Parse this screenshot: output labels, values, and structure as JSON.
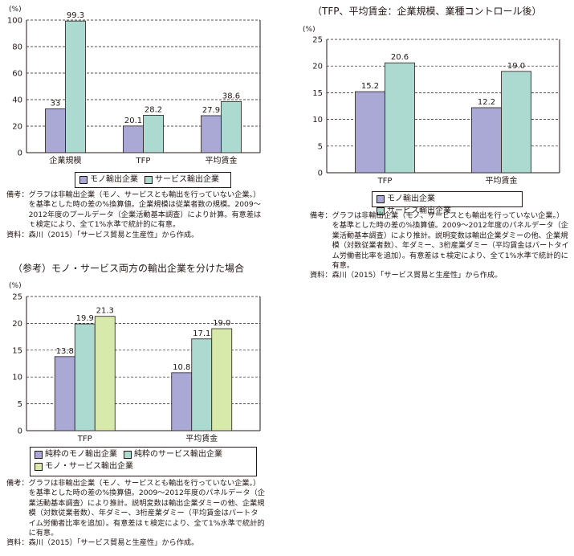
{
  "chart_data": [
    {
      "type": "bar",
      "title": "",
      "ylabel": "(%)",
      "ylim": [
        0,
        100
      ],
      "yticks": [
        0,
        20,
        40,
        60,
        80,
        100
      ],
      "categories": [
        "企業規模",
        "TFP",
        "平均賃金"
      ],
      "series": [
        {
          "name": "モノ輸出企業",
          "values": [
            33,
            20.1,
            27.9
          ],
          "labels": [
            "33",
            "20.1",
            "27.9"
          ],
          "color": "#aaa8d5"
        },
        {
          "name": "サービス輸出企業",
          "values": [
            99.3,
            28.2,
            38.6
          ],
          "labels": [
            "99.3",
            "28.2",
            "38.6"
          ],
          "color": "#acd9d0"
        }
      ],
      "grid": true,
      "legend_position": "bottom",
      "note": [
        {
          "label": "備考：",
          "text": "グラフは非輸出企業（モノ、サービスとも輸出を行っていない企業。）を基準とした時の差の%換算値。企業規模は従業者数の規模。2009～2012年度のプールデータ（企業活動基本調査）により計算。有意差はｔ検定により、全て1%水準で統計的に有意。"
        },
        {
          "label": "資料：",
          "text": "森川（2015）「サービス貿易と生産性」から作成。"
        }
      ]
    },
    {
      "type": "bar",
      "title": "（TFP、平均賃金：企業規模、業種コントロール後）",
      "ylabel": "(%)",
      "ylim": [
        0,
        25
      ],
      "yticks": [
        0,
        5,
        10,
        15,
        20,
        25
      ],
      "categories": [
        "TFP",
        "平均賃金"
      ],
      "series": [
        {
          "name": "モノ輸出企業",
          "values": [
            15.2,
            12.2
          ],
          "labels": [
            "15.2",
            "12.2"
          ],
          "color": "#aaa8d5"
        },
        {
          "name": "サービス輸出企業",
          "values": [
            20.6,
            19.0
          ],
          "labels": [
            "20.6",
            "19.0"
          ],
          "color": "#acd9d0"
        }
      ],
      "grid": true,
      "legend_position": "bottom",
      "note": [
        {
          "label": "備考：",
          "text": "グラフは非輸出企業（モノ、サービスとも輸出を行っていない企業。）を基準とした時の差の%換算値。2009～2012年度のパネルデータ（企業活動基本調査）により推計。説明変数は輸出企業ダミーの他、企業規模（対数従業者数）、年ダミー、3桁産業ダミー（平均賃金はパートタイム労働者比率を追加）。有意差はｔ検定により、全て1%水準で統計的に有意。"
        },
        {
          "label": "資料：",
          "text": "森川（2015）「サービス貿易と生産性」から作成。"
        }
      ]
    },
    {
      "type": "bar",
      "title": "（参考）モノ・サービス両方の輸出企業を分けた場合",
      "ylabel": "(%)",
      "ylim": [
        0,
        25
      ],
      "yticks": [
        0,
        5,
        10,
        15,
        20,
        25
      ],
      "categories": [
        "TFP",
        "平均賃金"
      ],
      "series": [
        {
          "name": "純粋のモノ輸出企業",
          "values": [
            13.8,
            10.8
          ],
          "labels": [
            "13.8",
            "10.8"
          ],
          "color": "#aaa8d5"
        },
        {
          "name": "純粋のサービス輸出企業",
          "values": [
            19.9,
            17.1
          ],
          "labels": [
            "19.9",
            "17.1"
          ],
          "color": "#acd9d0"
        },
        {
          "name": "モノ・サービス輸出企業",
          "values": [
            21.3,
            19.0
          ],
          "labels": [
            "21.3",
            "19.0"
          ],
          "color": "#d7eaac"
        }
      ],
      "grid": true,
      "legend_position": "bottom",
      "note": [
        {
          "label": "備考：",
          "text": "グラフは非輸出企業（モノ、サービスとも輸出を行っていない企業。）を基準とした時の差の%換算値。2009～2012年度のパネルデータ（企業活動基本調査）により推計。説明変数は輸出企業ダミーの他、企業規模（対数従業者数）、年ダミー、3桁産業ダミー（平均賃金はパートタイム労働者比率を追加）。有意差はｔ検定により、全て1%水準で統計的に有意。"
        },
        {
          "label": "資料：",
          "text": "森川（2015）「サービス貿易と生産性」から作成。"
        }
      ]
    }
  ]
}
